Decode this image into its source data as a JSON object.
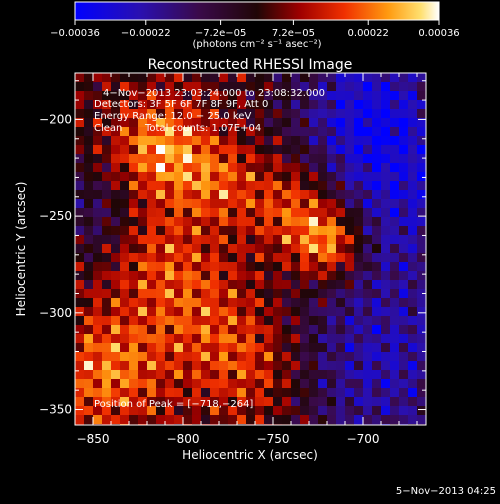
{
  "chart_data": {
    "type": "heatmap",
    "title": "Reconstructed RHESSI Image",
    "xlabel": "Heliocentric X (arcsec)",
    "ylabel": "Heliocentric Y (arcsec)",
    "xlim": [
      -860,
      -665
    ],
    "ylim": [
      -358,
      -176
    ],
    "x_ticks": [
      -850,
      -800,
      -750,
      -700
    ],
    "y_ticks": [
      -200,
      -250,
      -300,
      -350
    ],
    "x_tick_labels": [
      "−850",
      "−800",
      "−750",
      "−700"
    ],
    "y_tick_labels": [
      "−200",
      "−250",
      "−300",
      "−350"
    ],
    "colorbar": {
      "min": -0.00036,
      "max": 0.00036,
      "ticks": [
        -0.00036,
        -0.00022,
        -7.2e-05,
        7.2e-05,
        0.00022,
        0.00036
      ],
      "tick_labels": [
        "−0.00036",
        "−0.00022",
        "−7.2e−05",
        "7.2e−05",
        "0.00022",
        "0.00036"
      ],
      "label": "(photons cm⁻² s⁻¹ asec⁻²)",
      "colormap": [
        "#0000ff",
        "#3c0a9a",
        "#1e0a1e",
        "#8c0000",
        "#e62800",
        "#ff7a00",
        "#ffd040",
        "#ffffff"
      ]
    },
    "annotations": {
      "time": "4−Nov−2013 23:03:24.000 to 23:08:32.000",
      "detectors": "Detectors: 3F 5F 6F 7F 8F 9F, Att 0",
      "energy": "Energy Range: 12.0 − 25.0 keV",
      "method": "Clean",
      "counts": "Total counts: 1.07E+04",
      "peak_label": "Position of Peak = ",
      "peak_value": "[−718,−264]"
    },
    "peak": [
      -718,
      -264
    ],
    "grid": false,
    "footer_date": "5−Nov−2013 04:25"
  }
}
